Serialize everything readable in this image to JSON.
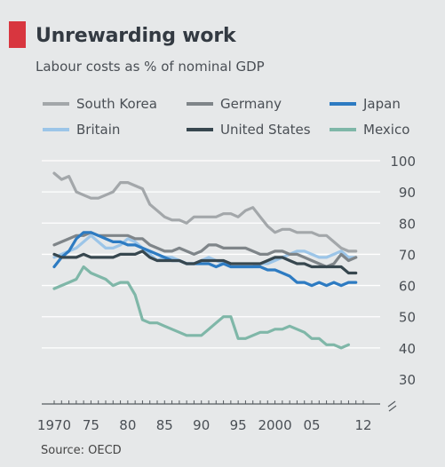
{
  "title": "Unrewarding work",
  "subtitle": "Labour costs as % of nominal GDP",
  "source": "Source: OECD",
  "colors": {
    "background": "#e6e8e9",
    "accent": "#d8363f",
    "gridline": "#ffffff"
  },
  "chart_data": {
    "type": "line",
    "title": "Unrewarding work",
    "subtitle": "Labour costs as % of nominal GDP",
    "xlabel": "",
    "ylabel": "",
    "xlim": [
      1970,
      2012
    ],
    "ylim": [
      30,
      100
    ],
    "y_ticks": [
      30,
      40,
      50,
      60,
      70,
      80,
      90,
      100
    ],
    "x_tick_labels": [
      {
        "value": 1970,
        "label": "1970"
      },
      {
        "value": 1975,
        "label": "75"
      },
      {
        "value": 1980,
        "label": "80"
      },
      {
        "value": 1985,
        "label": "85"
      },
      {
        "value": 1990,
        "label": "90"
      },
      {
        "value": 1995,
        "label": "95"
      },
      {
        "value": 2000,
        "label": "2000"
      },
      {
        "value": 2005,
        "label": "05"
      },
      {
        "value": 2012,
        "label": "12"
      }
    ],
    "grid": true,
    "legend_position": "top",
    "series": [
      {
        "name": "South Korea",
        "color": "#a3a7aa",
        "x": [
          1970,
          1971,
          1972,
          1973,
          1974,
          1975,
          1976,
          1977,
          1978,
          1979,
          1980,
          1981,
          1982,
          1983,
          1984,
          1985,
          1986,
          1987,
          1988,
          1989,
          1990,
          1991,
          1992,
          1993,
          1994,
          1995,
          1996,
          1997,
          1998,
          1999,
          2000,
          2001,
          2002,
          2003,
          2004,
          2005,
          2006,
          2007,
          2008,
          2009,
          2010,
          2011
        ],
        "y": [
          96,
          94,
          95,
          90,
          89,
          88,
          88,
          89,
          90,
          93,
          93,
          92,
          91,
          86,
          84,
          82,
          81,
          81,
          80,
          82,
          82,
          82,
          82,
          83,
          83,
          82,
          84,
          85,
          82,
          79,
          77,
          78,
          78,
          77,
          77,
          77,
          76,
          76,
          74,
          72,
          71,
          71
        ]
      },
      {
        "name": "Germany",
        "color": "#7f8589",
        "x": [
          1970,
          1971,
          1972,
          1973,
          1974,
          1975,
          1976,
          1977,
          1978,
          1979,
          1980,
          1981,
          1982,
          1983,
          1984,
          1985,
          1986,
          1987,
          1988,
          1989,
          1990,
          1991,
          1992,
          1993,
          1994,
          1995,
          1996,
          1997,
          1998,
          1999,
          2000,
          2001,
          2002,
          2003,
          2004,
          2005,
          2006,
          2007,
          2008,
          2009,
          2010,
          2011
        ],
        "y": [
          73,
          74,
          75,
          76,
          76,
          77,
          76,
          76,
          76,
          76,
          76,
          75,
          75,
          73,
          72,
          71,
          71,
          72,
          71,
          70,
          71,
          73,
          73,
          72,
          72,
          72,
          72,
          71,
          70,
          70,
          71,
          71,
          70,
          70,
          69,
          68,
          67,
          66,
          67,
          70,
          68,
          69
        ]
      },
      {
        "name": "Japan",
        "color": "#2d7bc2",
        "x": [
          1970,
          1971,
          1972,
          1973,
          1974,
          1975,
          1976,
          1977,
          1978,
          1979,
          1980,
          1981,
          1982,
          1983,
          1984,
          1985,
          1986,
          1987,
          1988,
          1989,
          1990,
          1991,
          1992,
          1993,
          1994,
          1995,
          1996,
          1997,
          1998,
          1999,
          2000,
          2001,
          2002,
          2003,
          2004,
          2005,
          2006,
          2007,
          2008,
          2009,
          2010,
          2011
        ],
        "y": [
          66,
          69,
          71,
          75,
          77,
          77,
          76,
          75,
          74,
          74,
          73,
          73,
          72,
          71,
          70,
          69,
          68,
          68,
          67,
          67,
          67,
          67,
          66,
          67,
          66,
          66,
          66,
          66,
          66,
          65,
          65,
          64,
          63,
          61,
          61,
          60,
          61,
          60,
          61,
          60,
          61,
          61
        ]
      },
      {
        "name": "Britain",
        "color": "#9cc5e8",
        "x": [
          1970,
          1971,
          1972,
          1973,
          1974,
          1975,
          1976,
          1977,
          1978,
          1979,
          1980,
          1981,
          1982,
          1983,
          1984,
          1985,
          1986,
          1987,
          1988,
          1989,
          1990,
          1991,
          1992,
          1993,
          1994,
          1995,
          1996,
          1997,
          1998,
          1999,
          2000,
          2001,
          2002,
          2003,
          2004,
          2005,
          2006,
          2007,
          2008,
          2009,
          2010,
          2011
        ],
        "y": [
          69,
          70,
          71,
          72,
          74,
          76,
          74,
          72,
          72,
          73,
          75,
          74,
          72,
          70,
          68,
          69,
          69,
          68,
          67,
          67,
          68,
          69,
          68,
          67,
          66,
          66,
          66,
          66,
          67,
          67,
          68,
          69,
          70,
          71,
          71,
          70,
          69,
          69,
          70,
          71,
          69,
          69
        ]
      },
      {
        "name": "United States",
        "color": "#37474f",
        "x": [
          1970,
          1971,
          1972,
          1973,
          1974,
          1975,
          1976,
          1977,
          1978,
          1979,
          1980,
          1981,
          1982,
          1983,
          1984,
          1985,
          1986,
          1987,
          1988,
          1989,
          1990,
          1991,
          1992,
          1993,
          1994,
          1995,
          1996,
          1997,
          1998,
          1999,
          2000,
          2001,
          2002,
          2003,
          2004,
          2005,
          2006,
          2007,
          2008,
          2009,
          2010,
          2011
        ],
        "y": [
          70,
          69,
          69,
          69,
          70,
          69,
          69,
          69,
          69,
          70,
          70,
          70,
          71,
          69,
          68,
          68,
          68,
          68,
          67,
          67,
          68,
          68,
          68,
          68,
          67,
          67,
          67,
          67,
          67,
          68,
          69,
          69,
          68,
          67,
          67,
          66,
          66,
          66,
          66,
          66,
          64,
          64
        ]
      },
      {
        "name": "Mexico",
        "color": "#7fb7a8",
        "x": [
          1970,
          1971,
          1972,
          1973,
          1974,
          1975,
          1976,
          1977,
          1978,
          1979,
          1980,
          1981,
          1982,
          1983,
          1984,
          1985,
          1986,
          1987,
          1988,
          1989,
          1990,
          1991,
          1992,
          1993,
          1994,
          1995,
          1996,
          1997,
          1998,
          1999,
          2000,
          2001,
          2002,
          2003,
          2004,
          2005,
          2006,
          2007,
          2008,
          2009,
          2010
        ],
        "y": [
          59,
          60,
          61,
          62,
          66,
          64,
          63,
          62,
          60,
          61,
          61,
          57,
          49,
          48,
          48,
          47,
          46,
          45,
          44,
          44,
          44,
          46,
          48,
          50,
          50,
          43,
          43,
          44,
          45,
          45,
          46,
          46,
          47,
          46,
          45,
          43,
          43,
          41,
          41,
          40,
          41
        ]
      }
    ]
  }
}
